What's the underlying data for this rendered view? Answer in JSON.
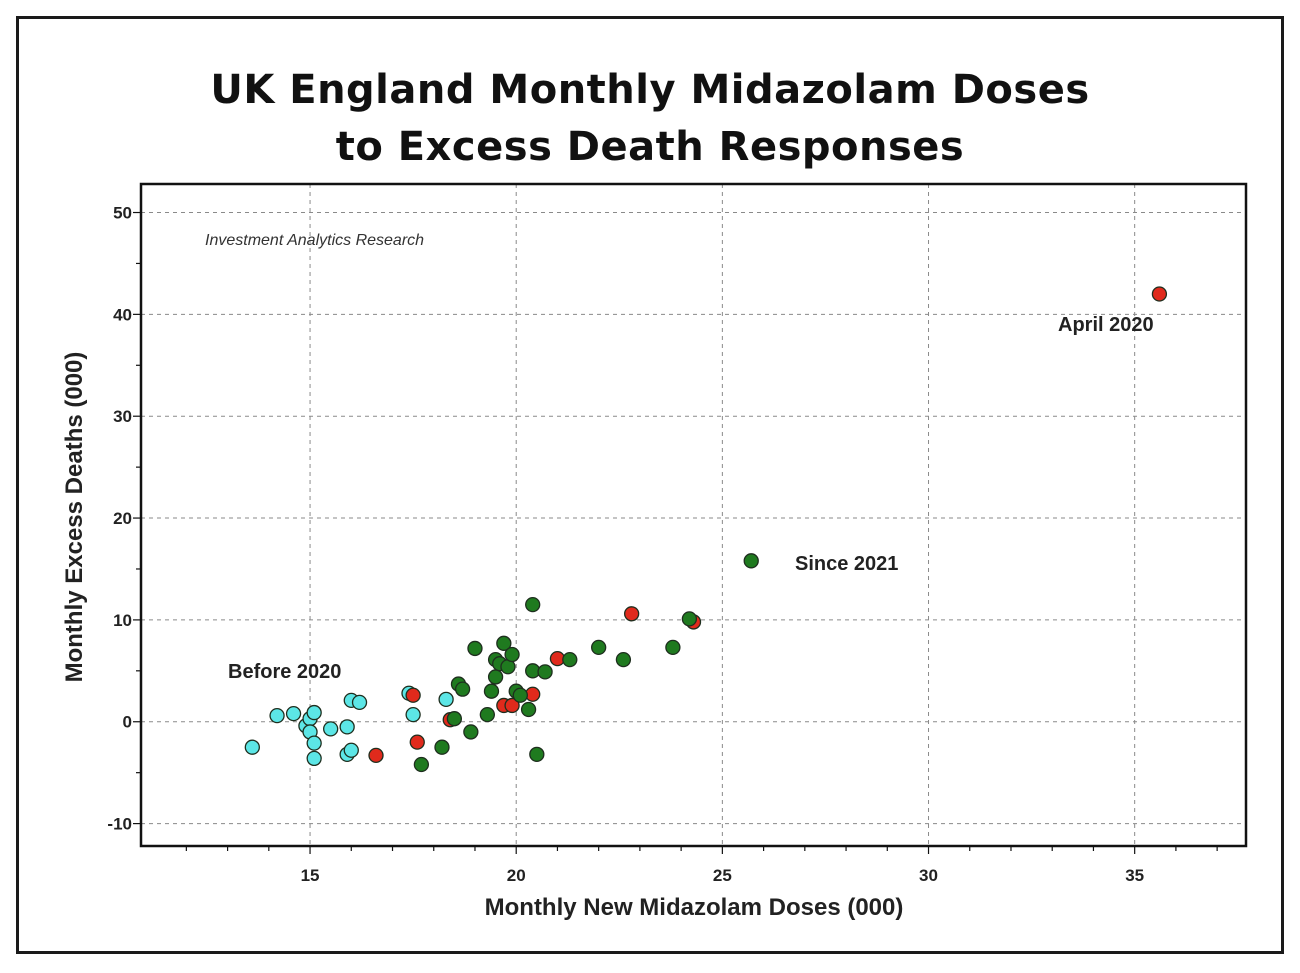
{
  "chart_data": {
    "type": "scatter",
    "title_line1": "UK England Monthly Midazolam Doses",
    "title_line2": "to Excess Death Responses",
    "xlabel": "Monthly New Midazolam Doses (000)",
    "ylabel": "Monthly Excess Deaths (000)",
    "xlim": [
      10.9,
      37.7
    ],
    "ylim": [
      -12.2,
      52.8
    ],
    "xticks": [
      15,
      20,
      25,
      30,
      35
    ],
    "yticks": [
      -10,
      0,
      10,
      20,
      30,
      40,
      50
    ],
    "grid": true,
    "watermark": "Investment Analytics Research",
    "annotations": {
      "before": "Before 2020",
      "since": "Since 2021",
      "april": "April 2020"
    },
    "colors": {
      "before": "#5ce6e6",
      "y2020": "#e02a1c",
      "since": "#1f7a1f",
      "stroke": "#1e2e1e"
    },
    "series": [
      {
        "name": "Before 2020",
        "key": "before",
        "points": [
          [
            13.6,
            -2.5
          ],
          [
            14.2,
            0.6
          ],
          [
            14.6,
            0.8
          ],
          [
            14.9,
            -0.4
          ],
          [
            15.0,
            0.3
          ],
          [
            15.1,
            0.9
          ],
          [
            15.0,
            -1.0
          ],
          [
            15.1,
            -2.1
          ],
          [
            15.1,
            -3.6
          ],
          [
            15.5,
            -0.7
          ],
          [
            15.9,
            -0.5
          ],
          [
            15.9,
            -3.2
          ],
          [
            16.0,
            -2.8
          ],
          [
            16.0,
            2.1
          ],
          [
            16.2,
            1.9
          ],
          [
            17.4,
            2.8
          ],
          [
            17.5,
            0.7
          ],
          [
            18.3,
            2.2
          ]
        ]
      },
      {
        "name": "2020",
        "key": "y2020",
        "points": [
          [
            16.6,
            -3.3
          ],
          [
            17.5,
            2.6
          ],
          [
            17.6,
            -2.0
          ],
          [
            18.4,
            0.2
          ],
          [
            19.7,
            1.6
          ],
          [
            19.9,
            1.6
          ],
          [
            20.4,
            2.7
          ],
          [
            21.0,
            6.2
          ],
          [
            22.8,
            10.6
          ],
          [
            24.3,
            9.8
          ],
          [
            35.6,
            42.0
          ]
        ]
      },
      {
        "name": "Since 2021",
        "key": "since",
        "points": [
          [
            17.7,
            -4.2
          ],
          [
            18.2,
            -2.5
          ],
          [
            18.5,
            0.3
          ],
          [
            18.6,
            3.7
          ],
          [
            18.7,
            3.2
          ],
          [
            18.9,
            -1.0
          ],
          [
            19.0,
            7.2
          ],
          [
            19.3,
            0.7
          ],
          [
            19.4,
            3.0
          ],
          [
            19.5,
            4.4
          ],
          [
            19.5,
            6.1
          ],
          [
            19.6,
            5.7
          ],
          [
            19.7,
            7.7
          ],
          [
            19.8,
            5.4
          ],
          [
            19.9,
            6.6
          ],
          [
            20.0,
            3.0
          ],
          [
            20.1,
            2.6
          ],
          [
            20.3,
            1.2
          ],
          [
            20.4,
            11.5
          ],
          [
            20.4,
            5.0
          ],
          [
            20.5,
            -3.2
          ],
          [
            20.7,
            4.9
          ],
          [
            21.3,
            6.1
          ],
          [
            22.0,
            7.3
          ],
          [
            22.6,
            6.1
          ],
          [
            23.8,
            7.3
          ],
          [
            24.2,
            10.1
          ]
        ]
      },
      {
        "name": "Since 2021 legend",
        "key": "since_legend",
        "points": [
          [
            25.7,
            15.8
          ]
        ]
      }
    ]
  }
}
